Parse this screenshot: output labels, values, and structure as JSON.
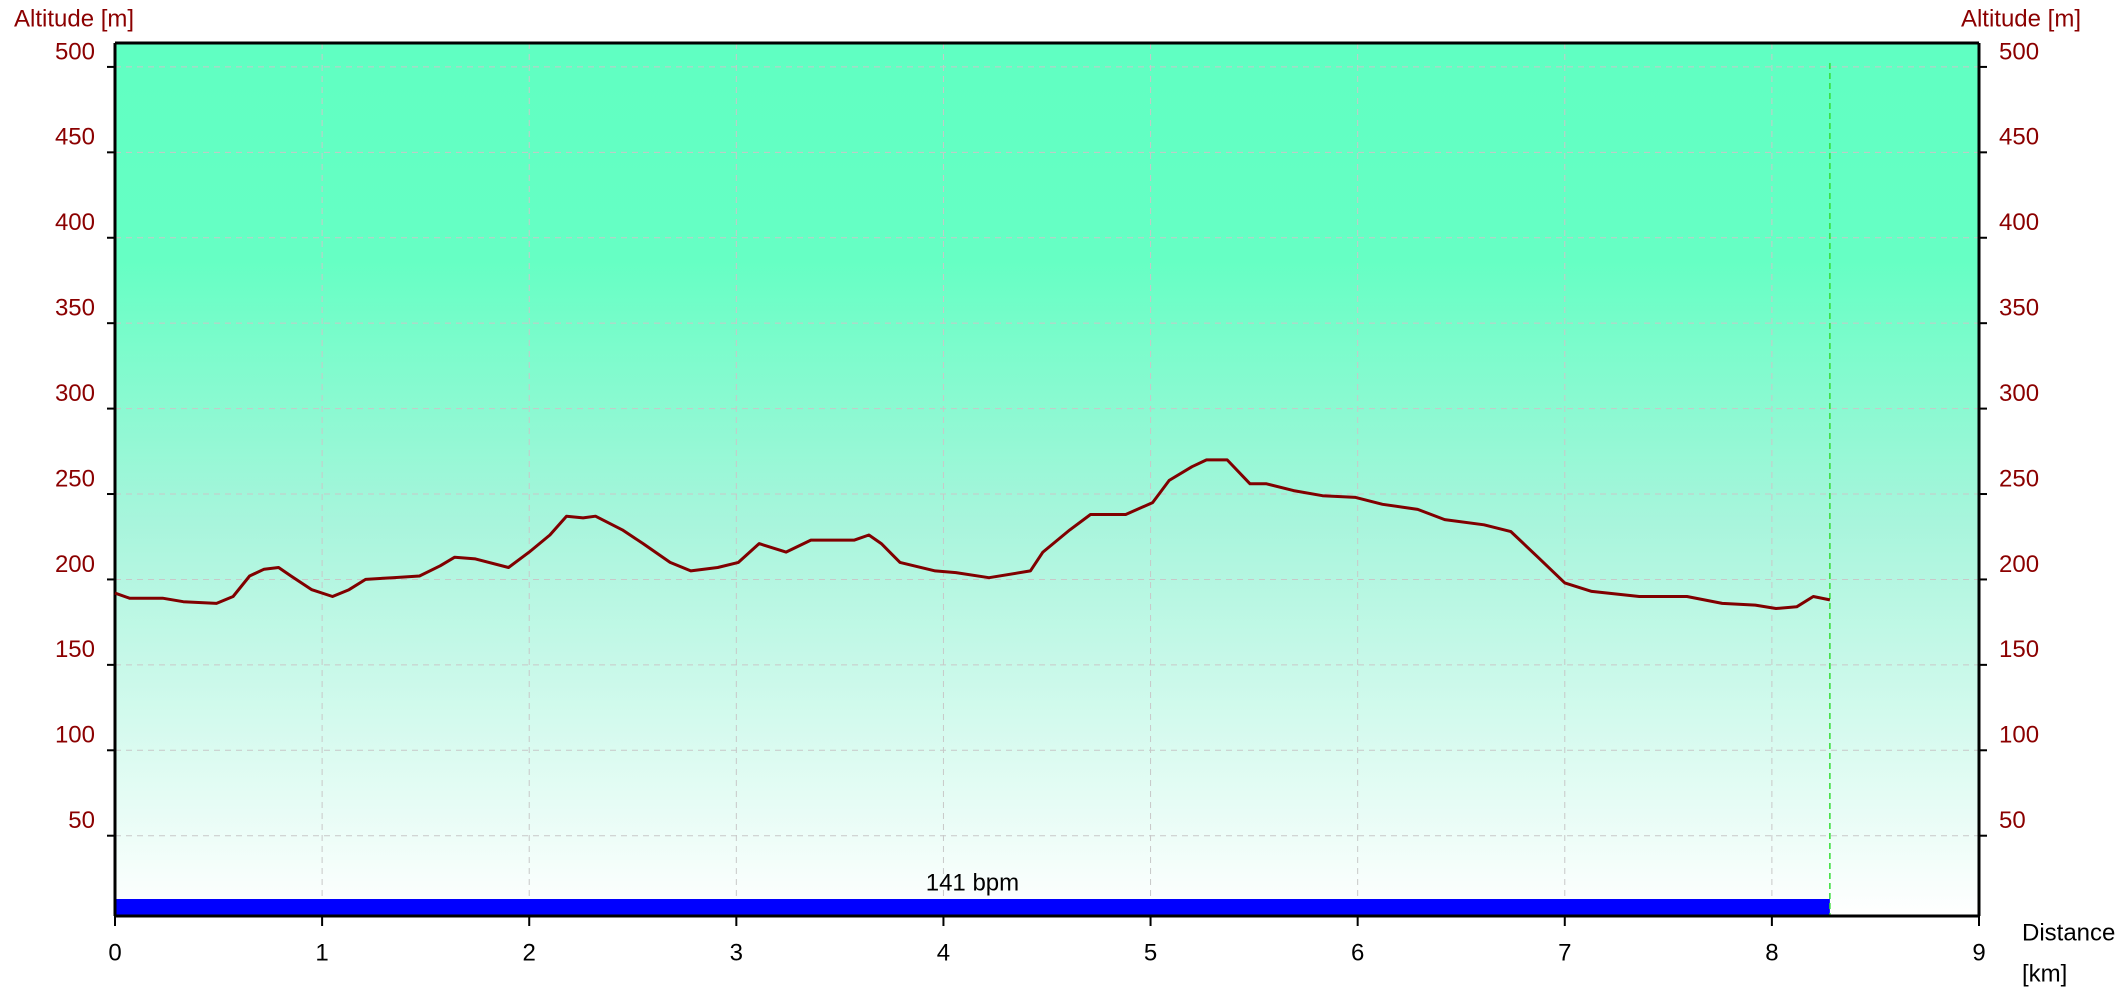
{
  "chart_data": {
    "type": "line",
    "y_label": "Altitude [m]",
    "y2_label": "Altitude [m]",
    "x_label_lines": [
      "Distance",
      "[km]"
    ],
    "xlim": [
      0,
      9
    ],
    "xticks": [
      0,
      1,
      2,
      3,
      4,
      5,
      6,
      7,
      8,
      9
    ],
    "ylim": [
      3,
      514
    ],
    "yticks": [
      50,
      100,
      150,
      200,
      250,
      300,
      350,
      400,
      450,
      500
    ],
    "y2lim": [
      3,
      514
    ],
    "y2ticks": [
      50,
      100,
      150,
      200,
      250,
      300,
      350,
      400,
      450,
      500
    ],
    "grid": true,
    "series": [
      {
        "name": "Altitude",
        "color": "#800000",
        "x": [
          0,
          0.07,
          0.23,
          0.33,
          0.49,
          0.57,
          0.65,
          0.72,
          0.79,
          0.85,
          0.95,
          1.05,
          1.13,
          1.21,
          1.34,
          1.47,
          1.57,
          1.64,
          1.74,
          1.9,
          2.0,
          2.1,
          2.18,
          2.26,
          2.32,
          2.45,
          2.55,
          2.68,
          2.78,
          2.91,
          3.01,
          3.11,
          3.24,
          3.36,
          3.57,
          3.64,
          3.7,
          3.79,
          3.96,
          4.06,
          4.22,
          4.42,
          4.48,
          4.61,
          4.71,
          4.88,
          5.01,
          5.09,
          5.2,
          5.27,
          5.37,
          5.48,
          5.56,
          5.69,
          5.83,
          5.99,
          6.12,
          6.29,
          6.42,
          6.61,
          6.74,
          6.87,
          7.0,
          7.13,
          7.36,
          7.59,
          7.76,
          7.92,
          8.02,
          8.12,
          8.2,
          8.28
        ],
        "values": [
          192,
          189,
          189,
          187,
          186,
          190,
          202,
          206,
          207,
          202,
          194,
          190,
          194,
          200,
          201,
          202,
          208,
          213,
          212,
          207,
          216,
          226,
          237,
          236,
          237,
          229,
          221,
          210,
          205,
          207,
          210,
          221,
          216,
          223,
          223,
          226,
          221,
          210,
          205,
          204,
          201,
          205,
          216,
          229,
          238,
          238,
          245,
          258,
          266,
          270,
          270,
          256,
          256,
          252,
          249,
          248,
          244,
          241,
          235,
          232,
          228,
          213,
          198,
          193,
          190,
          190,
          186,
          185,
          183,
          184,
          190,
          188
        ]
      }
    ],
    "zone": {
      "label": "141 bpm",
      "color": "#0000ff",
      "x_start": 0,
      "x_end": 8.28
    },
    "end_marker": {
      "color": "#33dd33",
      "x": 8.28
    }
  }
}
